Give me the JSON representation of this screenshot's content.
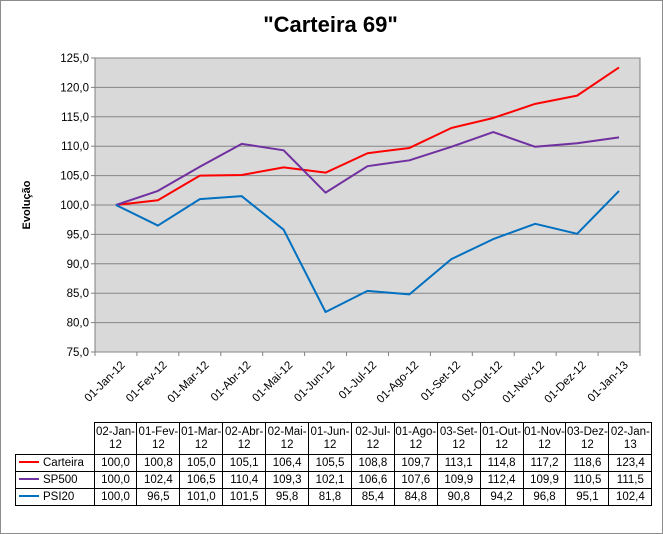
{
  "chart_data": {
    "type": "line",
    "title": "\"Carteira 69\"",
    "ylabel": "Evolução",
    "xlabel": "",
    "ylim": [
      75,
      125
    ],
    "ytick_labels": [
      "75,0",
      "80,0",
      "85,0",
      "90,0",
      "95,0",
      "100,0",
      "105,0",
      "110,0",
      "115,0",
      "120,0",
      "125,0"
    ],
    "grid": true,
    "plot_background": "#d9d9d9",
    "categories": [
      "01-Jan-12",
      "01-Fev-12",
      "01-Mar-12",
      "01-Abr-12",
      "01-Mai-12",
      "01-Jun-12",
      "01-Jul-12",
      "01-Ago-12",
      "01-Set-12",
      "01-Out-12",
      "01-Nov-12",
      "01-Dez-12",
      "01-Jan-13"
    ],
    "table_headers": [
      "02-Jan-12",
      "01-Fev-12",
      "01-Mar-12",
      "02-Abr-12",
      "02-Mai-12",
      "01-Jun-12",
      "02-Jul-12",
      "01-Ago-12",
      "03-Set-12",
      "01-Out-12",
      "01-Nov-12",
      "03-Dez-12",
      "02-Jan-13"
    ],
    "series": [
      {
        "name": "Carteira",
        "color": "#ff0000",
        "values": [
          100.0,
          100.8,
          105.0,
          105.1,
          106.4,
          105.5,
          108.8,
          109.7,
          113.1,
          114.8,
          117.2,
          118.6,
          123.4
        ],
        "labels": [
          "100,0",
          "100,8",
          "105,0",
          "105,1",
          "106,4",
          "105,5",
          "108,8",
          "109,7",
          "113,1",
          "114,8",
          "117,2",
          "118,6",
          "123,4"
        ]
      },
      {
        "name": "SP500",
        "color": "#7030a0",
        "values": [
          100.0,
          102.4,
          106.5,
          110.4,
          109.3,
          102.1,
          106.6,
          107.6,
          109.9,
          112.4,
          109.9,
          110.5,
          111.5
        ],
        "labels": [
          "100,0",
          "102,4",
          "106,5",
          "110,4",
          "109,3",
          "102,1",
          "106,6",
          "107,6",
          "109,9",
          "112,4",
          "109,9",
          "110,5",
          "111,5"
        ]
      },
      {
        "name": "PSI20",
        "color": "#0070c0",
        "values": [
          100.0,
          96.5,
          101.0,
          101.5,
          95.8,
          81.8,
          85.4,
          84.8,
          90.8,
          94.2,
          96.8,
          95.1,
          102.4
        ],
        "labels": [
          "100,0",
          "96,5",
          "101,0",
          "101,5",
          "95,8",
          "81,8",
          "85,4",
          "84,8",
          "90,8",
          "94,2",
          "96,8",
          "95,1",
          "102,4"
        ]
      }
    ]
  }
}
